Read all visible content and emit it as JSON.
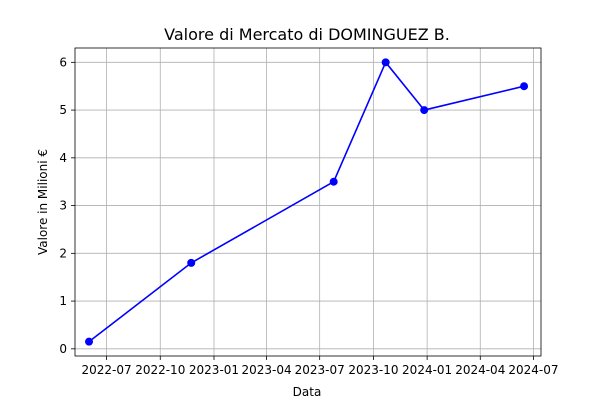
{
  "chart_data": {
    "type": "line",
    "title": "Valore di Mercato di DOMINGUEZ B.",
    "xlabel": "Data",
    "ylabel": "Valore in Milioni €",
    "x_ticks": [
      {
        "date": "2022-07-01",
        "label": "2022-07"
      },
      {
        "date": "2022-10-01",
        "label": "2022-10"
      },
      {
        "date": "2023-01-01",
        "label": "2023-01"
      },
      {
        "date": "2023-04-01",
        "label": "2023-04"
      },
      {
        "date": "2023-07-01",
        "label": "2023-07"
      },
      {
        "date": "2023-10-01",
        "label": "2023-10"
      },
      {
        "date": "2024-01-01",
        "label": "2024-01"
      },
      {
        "date": "2024-04-01",
        "label": "2024-04"
      },
      {
        "date": "2024-07-01",
        "label": "2024-07"
      }
    ],
    "y_ticks": [
      0,
      1,
      2,
      3,
      4,
      5,
      6
    ],
    "xlim": [
      "2022-05-08",
      "2024-07-14"
    ],
    "ylim": [
      -0.15,
      6.3
    ],
    "grid": true,
    "series": [
      {
        "color": "#0000ff",
        "marker": "circle",
        "points": [
          {
            "x": "2022-06-01",
            "y": 0.15
          },
          {
            "x": "2022-11-23",
            "y": 1.8
          },
          {
            "x": "2023-07-25",
            "y": 3.5
          },
          {
            "x": "2023-10-22",
            "y": 6.0
          },
          {
            "x": "2023-12-27",
            "y": 5.0
          },
          {
            "x": "2024-06-15",
            "y": 5.5
          }
        ]
      }
    ]
  }
}
